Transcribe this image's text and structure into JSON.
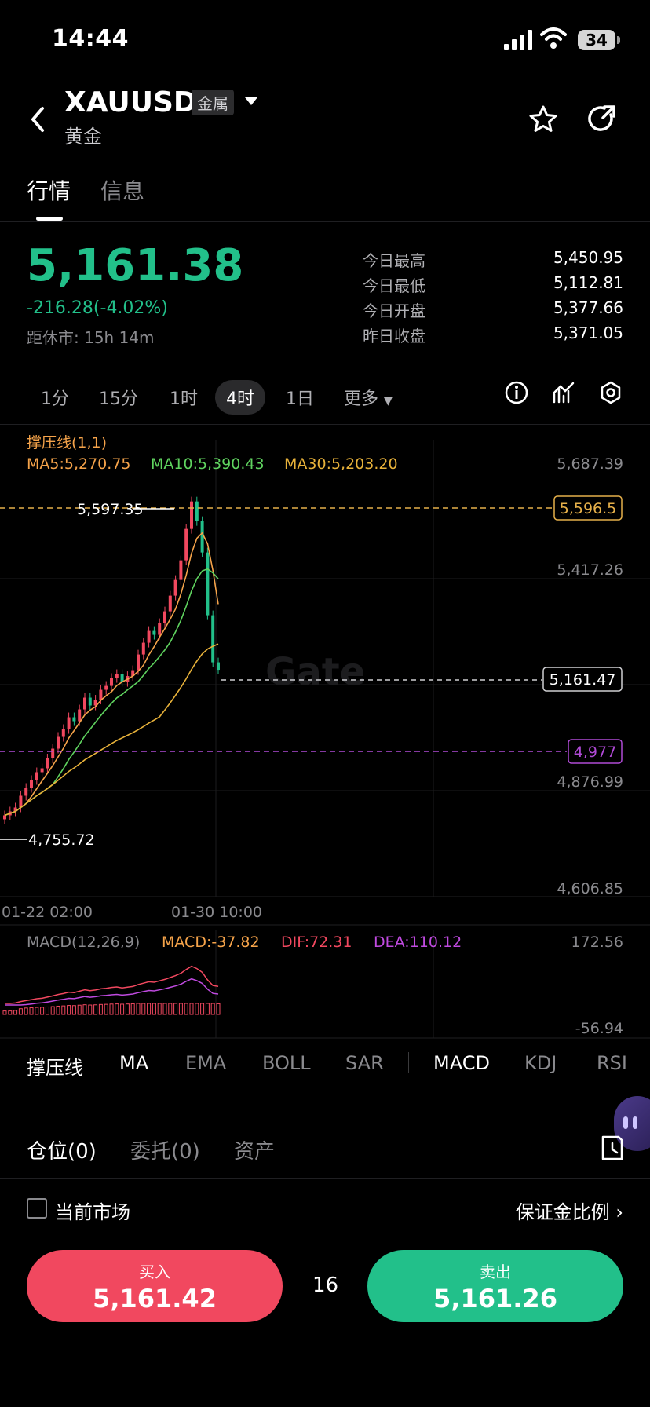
{
  "status_bar": {
    "time": "14:44",
    "battery": "34"
  },
  "header": {
    "symbol": "XAUUSD",
    "category_badge": "金属",
    "name": "黄金"
  },
  "tabs": [
    "行情",
    "信息"
  ],
  "quote": {
    "price": "5,161.38",
    "change": "-216.28(-4.02%)",
    "market_close": "距休市: 15h 14m",
    "stats": [
      {
        "label": "今日最高",
        "value": "5,450.95"
      },
      {
        "label": "今日最低",
        "value": "5,112.81"
      },
      {
        "label": "今日开盘",
        "value": "5,377.66"
      },
      {
        "label": "昨日收盘",
        "value": "5,371.05"
      }
    ]
  },
  "periods": [
    "1分",
    "15分",
    "1时",
    "4时",
    "1日",
    "更多"
  ],
  "active_period": "4时",
  "chart": {
    "study": "撑压线(1,1)",
    "ma5": "MA5:5,270.75",
    "ma10": "MA10:5,390.43",
    "ma30": "MA30:5,203.20",
    "price_axis": [
      "5,687.39",
      "5,417.26",
      "4,876.99",
      "4,606.85"
    ],
    "resistance_label": "5,596.5",
    "support_label": "4,977",
    "current_label": "5,161.47",
    "high_label": "5,597.35",
    "low_label": "4,755.72",
    "watermark": "Gate",
    "time_axis": [
      "01-22 02:00",
      "01-30 10:00"
    ],
    "macd_title": "MACD(12,26,9)",
    "macd": "MACD:-37.82",
    "dif": "DIF:72.31",
    "dea": "DEA:110.12",
    "macd_axis": [
      "172.56",
      "-56.94"
    ]
  },
  "colors": {
    "up": "#f1485f",
    "down": "#22c08a",
    "ma5": "#f5a34a",
    "ma10": "#5fd35f",
    "ma30": "#e8b23a",
    "resistance": "#e6b04a",
    "support": "#b04ad6",
    "dif": "#f1485f",
    "dea": "#c04ae0"
  },
  "indicators": [
    "撑压线",
    "MA",
    "EMA",
    "BOLL",
    "SAR",
    "MACD",
    "KDJ",
    "RSI"
  ],
  "positions_tabs": [
    "仓位(0)",
    "委托(0)",
    "资产"
  ],
  "current_market": "当前市场",
  "margin_ratio": "保证金比例 ›",
  "buy": {
    "label": "买入",
    "price": "5,161.42"
  },
  "sell": {
    "label": "卖出",
    "price": "5,161.26"
  },
  "spread": "16"
}
